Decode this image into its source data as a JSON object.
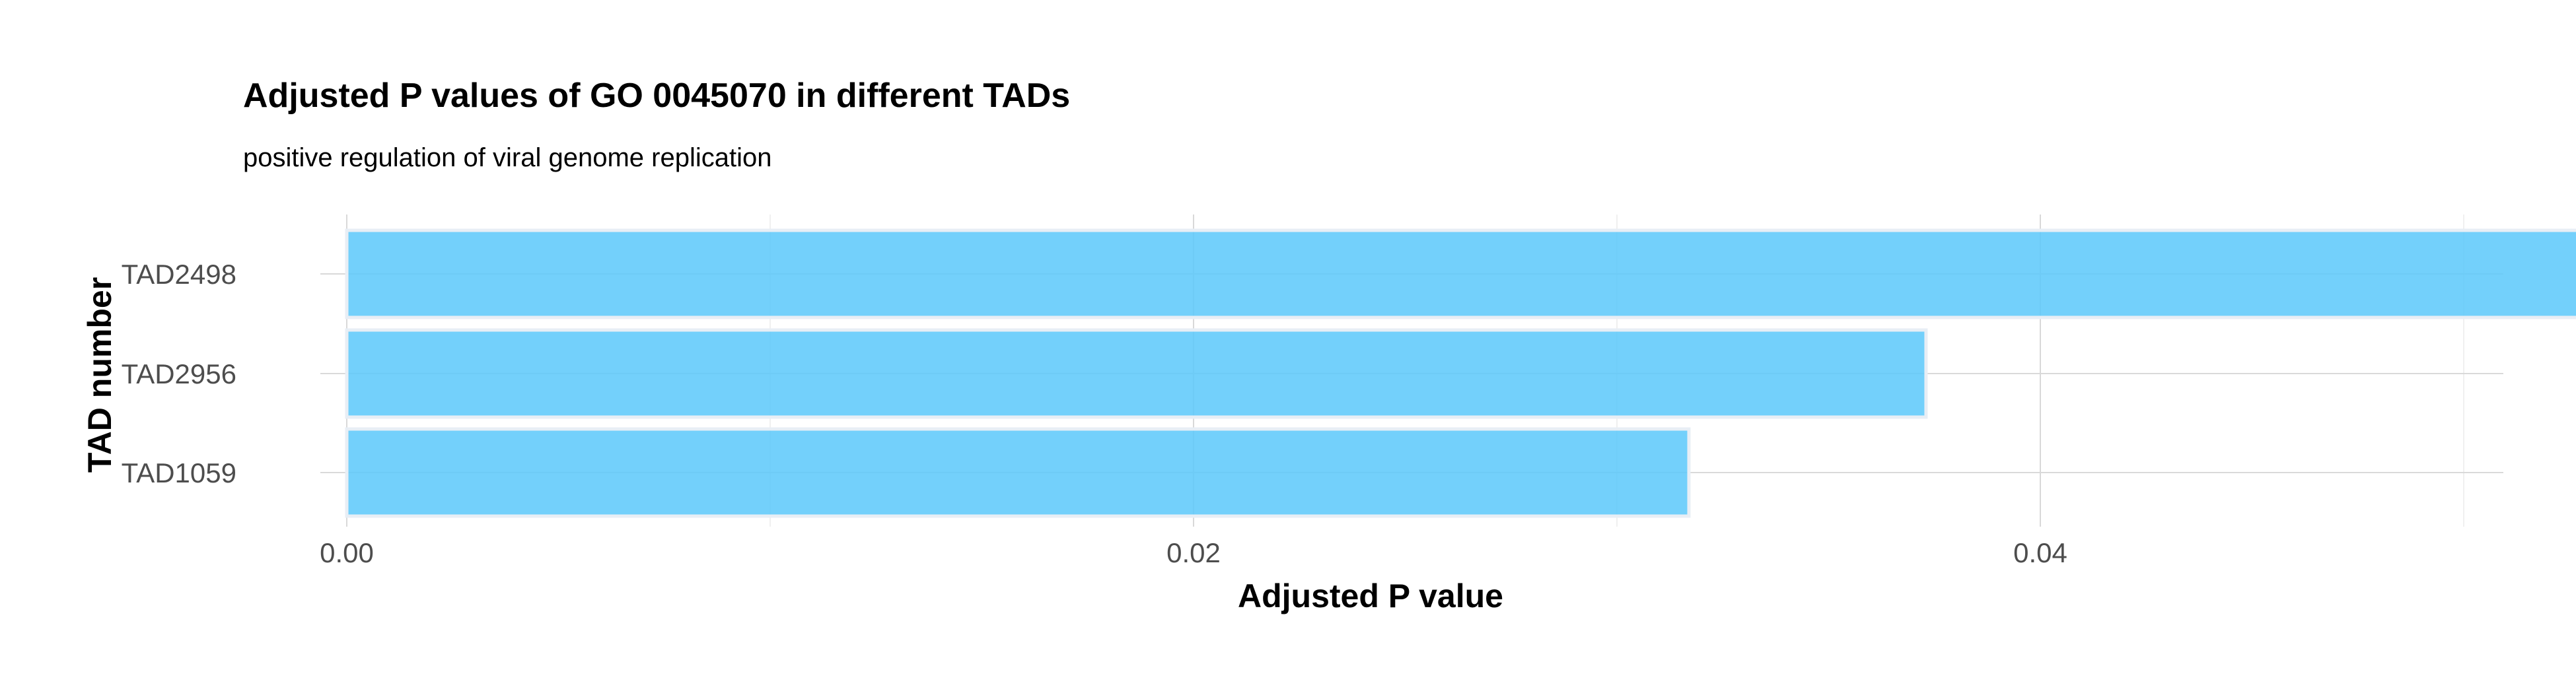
{
  "chart_data": {
    "type": "bar",
    "orientation": "horizontal",
    "title": "Adjusted P values of GO 0045070 in different TADs",
    "subtitle": "positive regulation of viral genome replication",
    "xlabel": "Adjusted P value",
    "ylabel": "TAD number",
    "categories": [
      "TAD2498",
      "TAD2956",
      "TAD1059"
    ],
    "values": [
      0.0564,
      0.0373,
      0.0317
    ],
    "xlim": [
      0,
      0.0592
    ],
    "x_ticks": [
      0.0,
      0.02,
      0.04
    ],
    "x_tick_labels": [
      "0.00",
      "0.02",
      "0.04"
    ],
    "bar_color": "#5bc8fa",
    "bar_opacity": 0.85,
    "grid": true,
    "legend": "none"
  }
}
